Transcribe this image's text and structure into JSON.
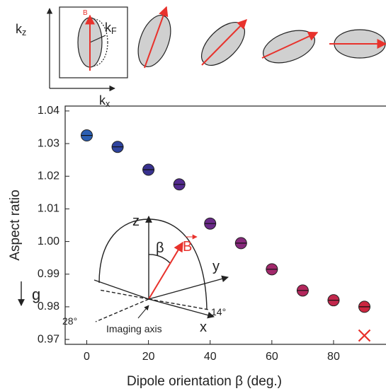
{
  "chart_data": {
    "type": "scatter",
    "x_label": "Dipole orientation β (deg.)",
    "y_label": "Aspect ratio",
    "x": [
      0,
      10,
      20,
      30,
      40,
      50,
      60,
      70,
      80,
      90
    ],
    "values": [
      1.0325,
      1.029,
      1.022,
      1.0175,
      1.0055,
      0.9995,
      0.9915,
      0.985,
      0.982,
      0.98
    ],
    "colors": [
      "#2b5fb3",
      "#2e439e",
      "#38318f",
      "#532b8f",
      "#6a2a88",
      "#86297b",
      "#a1286b",
      "#b3275c",
      "#c2274c",
      "#cc2740"
    ],
    "cross": {
      "x": 90,
      "value": 0.9712,
      "color": "#e8322c"
    },
    "xlim": [
      -7,
      97
    ],
    "ylim": [
      0.9685,
      1.0415
    ],
    "xticks": [
      0,
      20,
      40,
      60,
      80
    ],
    "yticks": [
      0.97,
      0.98,
      0.99,
      {
        "value": 1,
        "label": "1.00"
      },
      1.01,
      1.02,
      1.03,
      1.04
    ],
    "annotations": [
      {
        "text": "k",
        "sub": "z"
      },
      {
        "text": "k",
        "sub": "x"
      },
      {
        "text": "k",
        "sub": "F"
      },
      {
        "text": "B"
      },
      {
        "text": "z"
      },
      {
        "text": "β"
      },
      {
        "text": "B"
      },
      {
        "text": "y"
      },
      {
        "text": "x"
      },
      {
        "text": "g"
      },
      {
        "text": "28°"
      },
      {
        "text": "14°"
      },
      {
        "text": "Imaging axis"
      }
    ]
  }
}
